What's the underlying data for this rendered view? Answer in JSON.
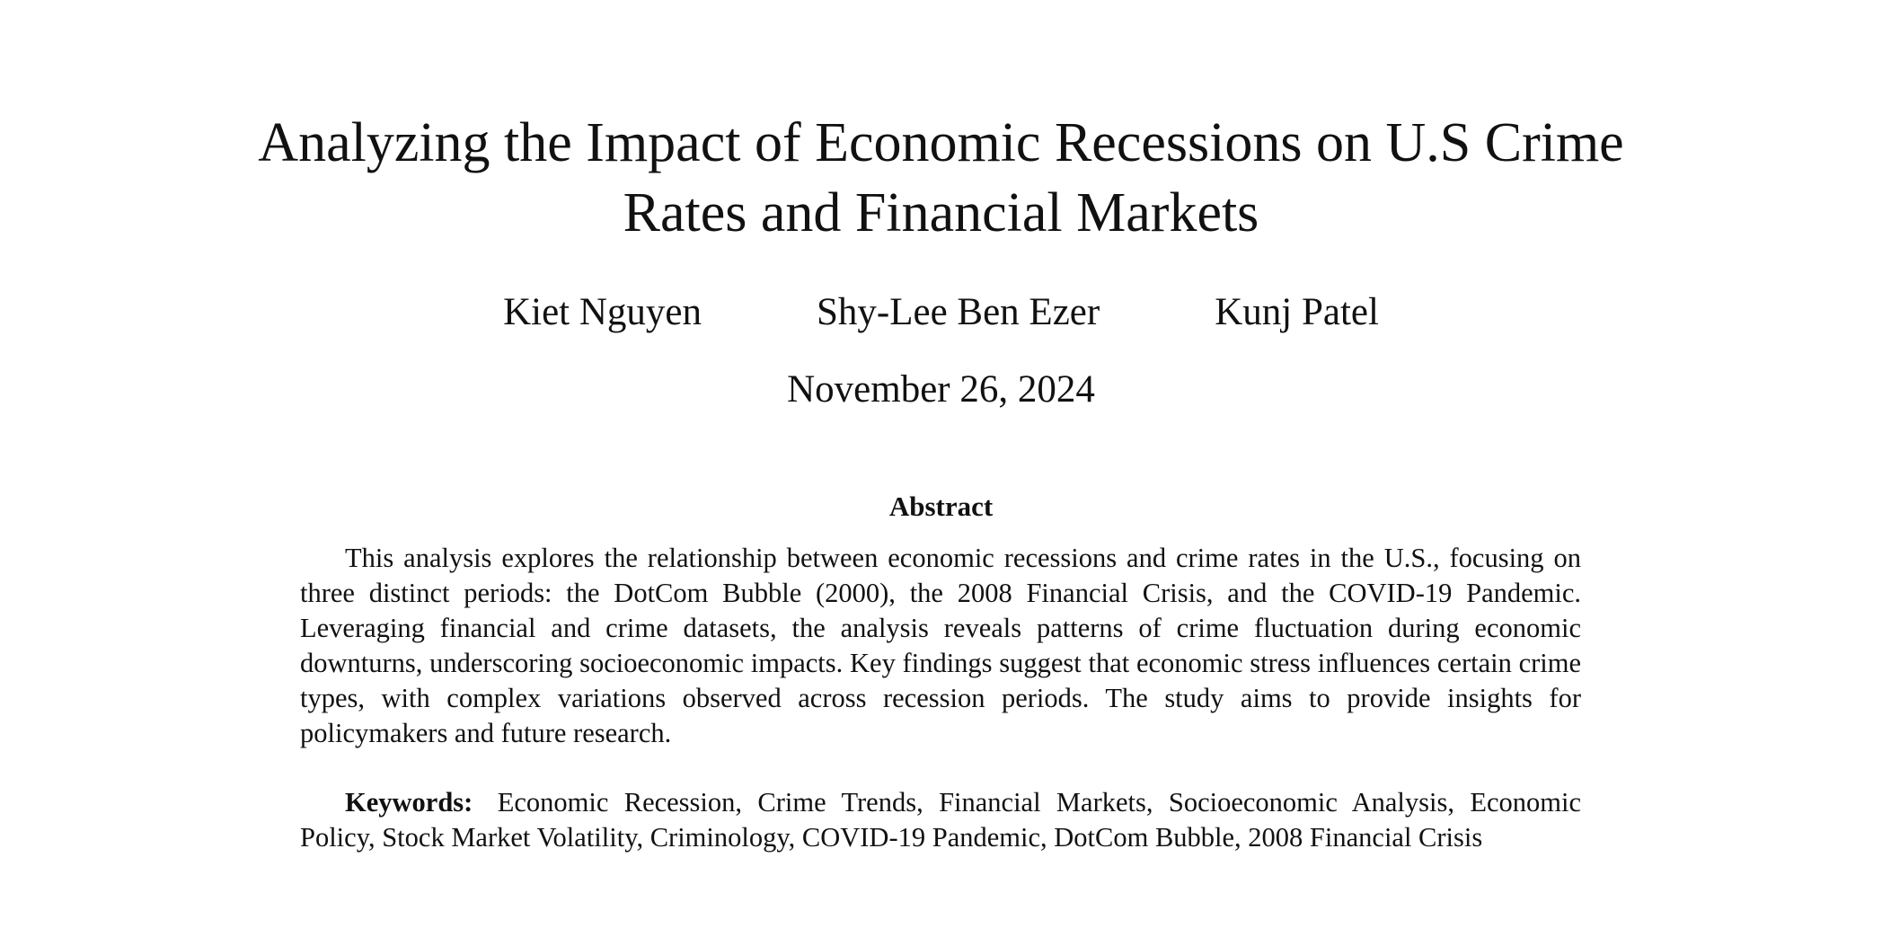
{
  "paper": {
    "title_line1": "Analyzing the Impact of Economic Recessions on U.S Crime",
    "title_line2": "Rates and Financial Markets",
    "authors": [
      "Kiet Nguyen",
      "Shy-Lee Ben Ezer",
      "Kunj Patel"
    ],
    "date": "November 26, 2024",
    "abstract_heading": "Abstract",
    "abstract_text": "This analysis explores the relationship between economic recessions and crime rates in the U.S., focusing on three distinct periods: the DotCom Bubble (2000), the 2008 Financial Crisis, and the COVID-19 Pandemic. Leveraging financial and crime datasets, the analysis reveals patterns of crime fluctuation during economic downturns, underscoring socioeconomic impacts. Key findings suggest that economic stress influences certain crime types, with complex variations observed across recession periods. The study aims to provide insights for policymakers and future research.",
    "keywords_label": "Keywords:",
    "keywords_text": "Economic Recession, Crime Trends, Financial Markets, Socioeconomic Analysis, Economic Policy, Stock Market Volatility, Criminology, COVID-19 Pandemic, DotCom Bubble, 2008 Financial Crisis"
  }
}
